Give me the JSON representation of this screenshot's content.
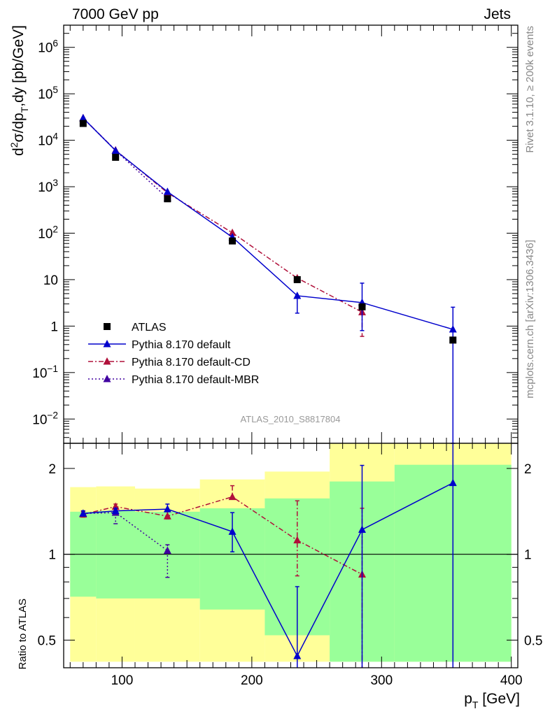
{
  "header": {
    "left": "7000 GeV pp",
    "right": "Jets"
  },
  "side_labels": {
    "rivet": "Rivet 3.1.10, ≥ 200k events",
    "mcplots": "mcplots.cern.ch [arXiv:1306.3436]"
  },
  "analysis_id": "ATLAS_2010_S8817804",
  "colors": {
    "data": "#000000",
    "default": "#0000cc",
    "cd": "#b0103a",
    "mbr": "#4000a0",
    "band_outer": "#ffff99",
    "band_inner": "#99ff99"
  },
  "chart_data": [
    {
      "type": "scatter",
      "panel": "main",
      "ylabel": "d²σ/dp_T,dy [pb/GeV]",
      "yscale": "log",
      "ylim": [
        0.003,
        3000000
      ],
      "xlim": [
        55,
        405
      ],
      "yticks": [
        "10^-2",
        "10^-1",
        "1",
        "10",
        "10^2",
        "10^3",
        "10^4",
        "10^5",
        "10^6"
      ],
      "legend": {
        "placement": "lower-left",
        "entries": [
          "ATLAS",
          "Pythia 8.170 default",
          "Pythia 8.170 default-CD",
          "Pythia 8.170 default-MBR"
        ]
      },
      "data_points": {
        "x": [
          70,
          95,
          135,
          185,
          235,
          285,
          355
        ],
        "y": [
          23000,
          4300,
          550,
          68,
          10,
          2.6,
          0.5
        ]
      },
      "series": [
        {
          "name": "Pythia 8.170 default",
          "style": "solid",
          "x": [
            70,
            95,
            135,
            185,
            235,
            285,
            355
          ],
          "y": [
            30000,
            6000,
            780,
            82,
            4.5,
            3.2,
            0.85
          ],
          "yerr_low": [
            0,
            0,
            0,
            0,
            2.6,
            2.4,
            0.85
          ],
          "yerr_high": [
            0,
            0,
            0,
            0,
            0,
            5.2,
            1.7
          ]
        },
        {
          "name": "Pythia 8.170 default-CD",
          "style": "dashdot",
          "x": [
            70,
            95,
            135,
            185,
            235,
            285
          ],
          "y": [
            30000,
            6100,
            740,
            102,
            10.8,
            2.0
          ],
          "yerr_low": [
            0,
            0,
            0,
            0,
            0,
            1.4
          ],
          "yerr_high": [
            0,
            0,
            0,
            0,
            0,
            0
          ]
        },
        {
          "name": "Pythia 8.170 default-MBR",
          "style": "dotted",
          "x": [
            70,
            95,
            135
          ],
          "y": [
            30000,
            6000,
            570
          ]
        }
      ]
    },
    {
      "type": "line",
      "panel": "ratio",
      "xlabel": "p_T [GeV]",
      "ylabel": "Ratio to ATLAS",
      "yscale": "log",
      "ylim": [
        0.4,
        2.45
      ],
      "xlim": [
        55,
        405
      ],
      "xticks": [
        "100",
        "200",
        "300",
        "400"
      ],
      "yticks": [
        "0.5",
        "1",
        "2"
      ],
      "reference_line": 1,
      "bins": [
        {
          "x0": 60,
          "x1": 80,
          "inner": [
            0.71,
            1.41
          ],
          "outer": [
            0.42,
            1.72
          ]
        },
        {
          "x0": 80,
          "x1": 110,
          "inner": [
            0.7,
            1.42
          ],
          "outer": [
            0.42,
            1.73
          ]
        },
        {
          "x0": 110,
          "x1": 160,
          "inner": [
            0.7,
            1.41
          ],
          "outer": [
            0.42,
            1.7
          ]
        },
        {
          "x0": 160,
          "x1": 210,
          "inner": [
            0.64,
            1.45
          ],
          "outer": [
            0.42,
            1.83
          ]
        },
        {
          "x0": 210,
          "x1": 260,
          "inner": [
            0.52,
            1.57
          ],
          "outer": [
            0.42,
            1.95
          ]
        },
        {
          "x0": 260,
          "x1": 310,
          "inner": [
            0.42,
            1.8
          ],
          "outer": [
            0.42,
            2.45
          ]
        },
        {
          "x0": 310,
          "x1": 400,
          "inner": [
            0.42,
            2.06
          ],
          "outer": [
            0.42,
            2.45
          ]
        }
      ],
      "series": [
        {
          "name": "Pythia 8.170 default",
          "style": "solid",
          "x": [
            70,
            95,
            135,
            185,
            235,
            285,
            355
          ],
          "y": [
            1.39,
            1.42,
            1.44,
            1.2,
            0.44,
            1.22,
            1.78
          ],
          "yerr_low": [
            0.03,
            0.03,
            0.03,
            0.18,
            0.42,
            0.85,
            1.4
          ],
          "yerr_high": [
            0.03,
            0.03,
            0.06,
            0.2,
            0.33,
            0.83,
            0.7
          ]
        },
        {
          "name": "Pythia 8.170 default-CD",
          "style": "dashdot",
          "x": [
            70,
            95,
            135,
            185,
            235,
            285
          ],
          "y": [
            1.38,
            1.47,
            1.36,
            1.59,
            1.12,
            0.85
          ],
          "yerr_low": [
            0.03,
            0.03,
            0.03,
            0.03,
            0.28,
            0.45
          ],
          "yerr_high": [
            0.03,
            0.03,
            0.05,
            0.15,
            0.42,
            0.6
          ]
        },
        {
          "name": "Pythia 8.170 default-MBR",
          "style": "dotted",
          "x": [
            70,
            95,
            135
          ],
          "y": [
            1.39,
            1.4,
            1.03
          ],
          "yerr_low": [
            0.03,
            0.12,
            0.2
          ],
          "yerr_high": [
            0.03,
            0.03,
            0.05
          ]
        }
      ]
    }
  ]
}
